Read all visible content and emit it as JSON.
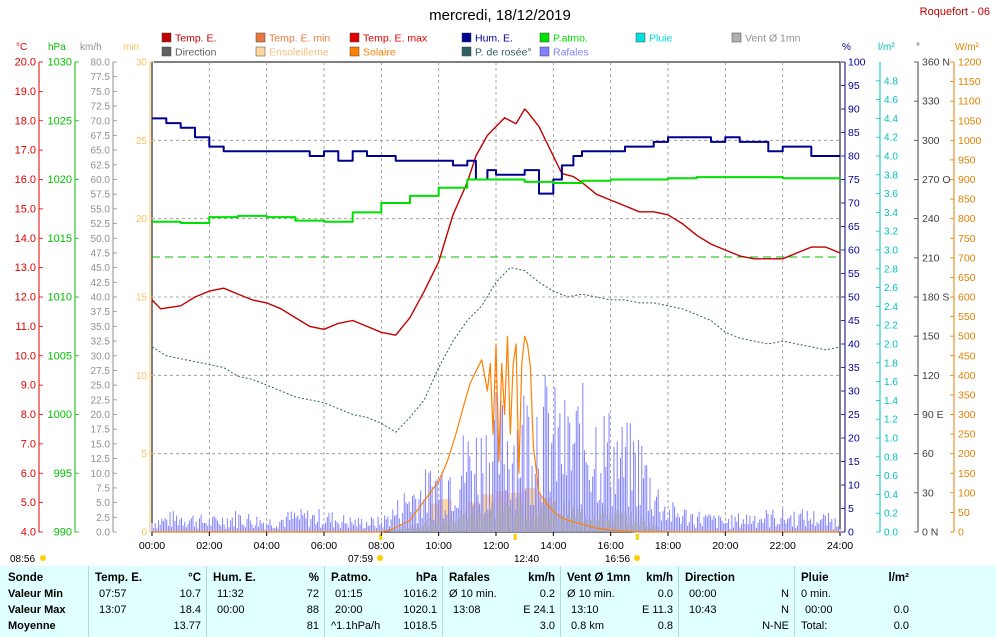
{
  "station": "Roquefort - 06",
  "chart_data": {
    "type": "line",
    "title": "mercredi, 18/12/2019",
    "legend": [
      {
        "label": "Temp. E.",
        "color": "#c00000"
      },
      {
        "label": "Direction",
        "color": "#606060"
      },
      {
        "label": "Temp. E. min",
        "color": "#e87840"
      },
      {
        "label": "Ensoleilleme",
        "color": "#ffd8a0"
      },
      {
        "label": "Temp. E. max",
        "color": "#e00000"
      },
      {
        "label": "Solaire",
        "color": "#ff8000"
      },
      {
        "label": "Hum. E.",
        "color": "#000090"
      },
      {
        "label": "P. de rosée°",
        "color": "#306060"
      },
      {
        "label": "P.atmo.",
        "color": "#00e000"
      },
      {
        "label": "Rafales",
        "color": "#8080ff"
      },
      {
        "label": "Pluie",
        "color": "#00e0e0"
      },
      {
        "label": "Vent Ø 1mn",
        "color": "#b0b0b0"
      }
    ],
    "x_ticks": [
      "00:00",
      "02:00",
      "04:00",
      "06:00",
      "08:00",
      "10:00",
      "12:00",
      "14:00",
      "16:00",
      "18:00",
      "20:00",
      "22:00",
      "24:00"
    ],
    "xlim": [
      0,
      24
    ],
    "axes": {
      "temp": {
        "unit": "°C",
        "range": [
          4,
          20
        ],
        "ticks": [
          "20.0",
          "19.0",
          "18.0",
          "17.0",
          "16.0",
          "15.0",
          "14.0",
          "13.0",
          "12.0",
          "11.0",
          "10.0",
          "9.0",
          "8.0",
          "7.0",
          "6.0",
          "5.0",
          "4.0"
        ],
        "color": "#e00000"
      },
      "pressure": {
        "unit": "hPa",
        "range": [
          990,
          1030
        ],
        "ticks": [
          "1030",
          "1025",
          "1020",
          "1015",
          "1010",
          "1005",
          "1000",
          "995",
          "990"
        ],
        "color": "#00c000"
      },
      "wind": {
        "unit": "km/h",
        "range": [
          0,
          80
        ],
        "ticks": [
          "80.0",
          "77.5",
          "75.0",
          "72.5",
          "70.0",
          "67.5",
          "65.0",
          "62.5",
          "60.0",
          "57.5",
          "55.0",
          "52.5",
          "50.0",
          "47.5",
          "45.0",
          "42.5",
          "40.0",
          "37.5",
          "35.0",
          "32.5",
          "30.0",
          "27.5",
          "25.0",
          "22.5",
          "20.0",
          "17.5",
          "15.0",
          "12.5",
          "10.0",
          "7.5",
          "5.0",
          "2.5",
          "0.0"
        ],
        "color": "#909090"
      },
      "sun": {
        "unit": "min",
        "range": [
          0,
          30
        ],
        "ticks": [
          "30",
          "25",
          "20",
          "15",
          "10",
          "5",
          "0"
        ],
        "color": "#ffc060"
      },
      "humidity": {
        "unit": "%",
        "range": [
          0,
          100
        ],
        "ticks": [
          "100",
          "95",
          "90",
          "85",
          "80",
          "75",
          "70",
          "65",
          "60",
          "55",
          "50",
          "45",
          "40",
          "35",
          "30",
          "25",
          "20",
          "15",
          "10",
          "5",
          "0"
        ],
        "color": "#000090"
      },
      "rain": {
        "unit": "l/m²",
        "range": [
          0,
          5
        ],
        "ticks": [
          "4.8",
          "4.6",
          "4.4",
          "4.2",
          "4.0",
          "3.8",
          "3.6",
          "3.4",
          "3.2",
          "3.0",
          "2.8",
          "2.6",
          "2.4",
          "2.2",
          "2.0",
          "1.8",
          "1.6",
          "1.4",
          "1.2",
          "1.0",
          "0.8",
          "0.6",
          "0.4",
          "0.2",
          "0.0"
        ],
        "color": "#00c0c0"
      },
      "direction": {
        "unit": "°",
        "range": [
          0,
          360
        ],
        "ticks": [
          "360 N",
          "330",
          "300",
          "270 O",
          "240",
          "210",
          "180 S",
          "150",
          "120",
          "90 E",
          "60",
          "30",
          "0 N"
        ],
        "color": "#404040"
      },
      "solar": {
        "unit": "W/m²",
        "range": [
          0,
          1200
        ],
        "ticks": [
          "1200",
          "1150",
          "1100",
          "1050",
          "1000",
          "950",
          "900",
          "850",
          "800",
          "750",
          "700",
          "650",
          "600",
          "550",
          "500",
          "450",
          "400",
          "350",
          "300",
          "250",
          "200",
          "150",
          "100",
          "50",
          "0"
        ],
        "color": "#e08000"
      }
    },
    "series": [
      {
        "name": "Temp. E.",
        "axis": "temp",
        "color": "#c00000",
        "x": [
          0,
          0.3,
          1,
          1.5,
          2,
          2.5,
          3,
          3.5,
          4,
          4.5,
          5,
          5.5,
          6,
          6.5,
          7,
          7.5,
          8,
          8.5,
          9,
          9.5,
          10,
          10.5,
          11,
          11.3,
          11.7,
          12,
          12.3,
          12.7,
          13,
          13.1,
          13.5,
          14,
          14.3,
          14.7,
          15,
          15.5,
          16,
          16.5,
          17,
          17.5,
          18,
          18.5,
          19,
          19.5,
          20,
          20.5,
          21,
          21.5,
          22,
          22.5,
          23,
          23.5,
          24
        ],
        "y": [
          11.9,
          11.6,
          11.7,
          12.0,
          12.2,
          12.3,
          12.1,
          11.9,
          11.8,
          11.6,
          11.3,
          11.0,
          10.9,
          11.1,
          11.2,
          11.0,
          10.8,
          10.7,
          11.3,
          12.2,
          13.2,
          14.8,
          15.9,
          16.8,
          17.5,
          17.8,
          18.1,
          17.9,
          18.4,
          18.3,
          17.8,
          16.8,
          16.2,
          16.1,
          15.9,
          15.5,
          15.3,
          15.1,
          14.9,
          14.9,
          14.8,
          14.5,
          14.1,
          13.8,
          13.6,
          13.4,
          13.3,
          13.3,
          13.3,
          13.5,
          13.7,
          13.7,
          13.5
        ]
      },
      {
        "name": "Hum. E.",
        "axis": "humidity",
        "color": "#000090",
        "x": [
          0,
          0.5,
          1,
          1.5,
          2,
          2.5,
          3,
          3.5,
          4,
          4.5,
          5,
          5.5,
          6,
          6.5,
          7,
          7.5,
          8,
          8.5,
          9,
          9.5,
          10,
          10.5,
          11,
          11.3,
          11.7,
          12,
          12.5,
          13,
          13.5,
          14,
          14.3,
          14.7,
          15,
          15.5,
          16,
          16.5,
          17,
          17.5,
          18,
          18.5,
          19,
          19.5,
          20,
          20.5,
          21,
          21.5,
          22,
          22.5,
          23,
          23.5,
          24
        ],
        "y": [
          88,
          87,
          86,
          84,
          82,
          81,
          81,
          81,
          81,
          81,
          81,
          80,
          81,
          79,
          81,
          80,
          80,
          79,
          79,
          79,
          79,
          78,
          79,
          75,
          77,
          76,
          76,
          77,
          72,
          75,
          78,
          80,
          81,
          81,
          81,
          82,
          82,
          83,
          84,
          84,
          84,
          83,
          84,
          83,
          83,
          81,
          82,
          82,
          80,
          80,
          80
        ]
      },
      {
        "name": "P.atmo.",
        "axis": "pressure",
        "color": "#00e000",
        "x": [
          0,
          1,
          2,
          3,
          4,
          5,
          6,
          7,
          8,
          9,
          10,
          11,
          12,
          13,
          14,
          15,
          16,
          17,
          18,
          19,
          20,
          21,
          22,
          23,
          24
        ],
        "y": [
          1016.4,
          1016.3,
          1016.8,
          1016.9,
          1016.8,
          1016.5,
          1016.4,
          1017.2,
          1018.0,
          1018.6,
          1019.3,
          1020.0,
          1020.0,
          1019.8,
          1019.7,
          1019.9,
          1020.0,
          1020.0,
          1020.1,
          1020.2,
          1020.2,
          1020.2,
          1020.1,
          1020.1,
          1020.0
        ]
      },
      {
        "name": "P. de rosée°",
        "axis": "temp",
        "color": "#306060",
        "x": [
          0,
          0.5,
          1,
          1.5,
          2,
          2.5,
          3,
          3.5,
          4,
          4.5,
          5,
          5.5,
          6,
          6.5,
          7,
          7.5,
          8,
          8.5,
          9,
          9.5,
          10,
          10.5,
          11,
          11.5,
          12,
          12.5,
          13,
          13.5,
          14,
          14.5,
          15,
          15.5,
          16,
          16.5,
          17,
          17.5,
          18,
          18.5,
          19,
          19.5,
          20,
          20.5,
          21,
          21.5,
          22,
          22.5,
          23,
          23.5,
          24
        ],
        "y": [
          10.3,
          10.0,
          9.9,
          9.8,
          9.7,
          9.6,
          9.3,
          9.2,
          9.0,
          8.8,
          8.6,
          8.5,
          8.4,
          8.2,
          8.0,
          7.9,
          7.7,
          7.4,
          7.9,
          8.5,
          9.6,
          10.5,
          11.2,
          11.7,
          12.5,
          13.0,
          12.9,
          12.5,
          12.2,
          12.0,
          12.1,
          12.0,
          11.9,
          11.9,
          11.8,
          11.8,
          11.7,
          11.6,
          11.4,
          11.2,
          10.8,
          10.6,
          10.5,
          10.4,
          10.5,
          10.4,
          10.3,
          10.2,
          10.3
        ]
      },
      {
        "name": "Solaire",
        "axis": "solar",
        "color": "#ff8000",
        "x": [
          0,
          8,
          8.3,
          8.6,
          9,
          9.3,
          9.6,
          10,
          10.3,
          10.6,
          10.9,
          11.1,
          11.3,
          11.5,
          11.7,
          11.8,
          11.9,
          12,
          12.1,
          12.2,
          12.3,
          12.4,
          12.5,
          12.6,
          12.7,
          12.8,
          12.9,
          13,
          13.1,
          13.2,
          13.3,
          13.5,
          13.7,
          13.9,
          14.2,
          14.5,
          15,
          15.5,
          16,
          16.5,
          17,
          24
        ],
        "y": [
          0,
          0,
          5,
          15,
          30,
          60,
          90,
          130,
          180,
          250,
          330,
          380,
          410,
          440,
          360,
          430,
          250,
          480,
          180,
          430,
          300,
          500,
          250,
          430,
          480,
          150,
          430,
          500,
          480,
          420,
          220,
          100,
          80,
          60,
          40,
          30,
          20,
          10,
          5,
          2,
          0,
          0
        ]
      },
      {
        "name": "Rafales",
        "axis": "wind",
        "color": "#8080ff",
        "x": [
          0,
          1,
          2,
          3,
          4,
          5,
          6,
          7,
          8,
          8.5,
          9,
          9.5,
          10,
          10.5,
          11,
          11.5,
          12,
          12.5,
          13,
          13.5,
          14,
          14.5,
          15,
          15.5,
          16,
          16.5,
          17,
          17.5,
          18,
          19,
          20,
          21,
          22,
          23,
          24
        ],
        "y": [
          2,
          3,
          2,
          3,
          2,
          3,
          3,
          2,
          2,
          4,
          7,
          8,
          10,
          12,
          14,
          15,
          18,
          18,
          20,
          22,
          19,
          17,
          19,
          18,
          16,
          14,
          14,
          8,
          4,
          3,
          2,
          3,
          3,
          3,
          2
        ]
      },
      {
        "name": "Vent Ø 1mn",
        "axis": "wind",
        "color": "#b0b0b0",
        "x": [
          0,
          8,
          9,
          10,
          11,
          12,
          13,
          14,
          15,
          16,
          17,
          18,
          24
        ],
        "y": [
          0,
          0,
          1,
          2,
          3,
          4,
          4,
          4,
          3,
          3,
          2,
          0,
          0
        ]
      }
    ],
    "sun_bars": {
      "x": [
        9.7,
        10,
        11,
        11.5,
        12,
        12.5,
        13,
        13.5
      ],
      "y": [
        1.8,
        2.1,
        1.9,
        2.4,
        2.6,
        2.5,
        2.8,
        2.2
      ]
    },
    "reference_line": {
      "axis": "humidity",
      "value": 58.5,
      "color": "#00c000"
    }
  },
  "annotations": {
    "left_time": "08:56",
    "sunrise": "07:59",
    "noon": "12:40",
    "sunset": "16:56"
  },
  "summary": {
    "labels": [
      "Sonde",
      "Valeur Min",
      "Valeur Max",
      "Moyenne"
    ],
    "temp": {
      "title": "Temp. E.",
      "unit": "°C",
      "min_time": "07:57",
      "min": "10.7",
      "max_time": "13:07",
      "max": "18.4",
      "avg": "13.77"
    },
    "hum": {
      "title": "Hum. E.",
      "unit": "%",
      "min_time": "11:32",
      "min": "72",
      "max_time": "00:00",
      "max": "88",
      "avg": "81"
    },
    "patmo": {
      "title": "P.atmo.",
      "unit": "hPa",
      "min_time": "01:15",
      "min": "1016.2",
      "max_time": "20:00",
      "max": "1020.1",
      "trend": "^1.1hPa/h",
      "avg": "1018.5"
    },
    "rafales": {
      "title": "Rafales",
      "unit": "km/h",
      "r1": "Ø 10 min.",
      "r1v": "0.2",
      "r2": "13:08",
      "r2v": "E 24.1",
      "avg": "3.0"
    },
    "vent": {
      "title": "Vent Ø 1mn",
      "unit": "km/h",
      "r1": "Ø 10 min.",
      "r1v": "0.0",
      "r2": "13:10",
      "r2v": "E 11.3",
      "r3": "0.8 km",
      "r3v": "0.8"
    },
    "dir": {
      "title": "Direction",
      "r1": "00:00",
      "r1v": "N",
      "r2": "10:43",
      "r2v": "N",
      "r3v": "N-NE"
    },
    "pluie": {
      "title": "Pluie",
      "unit": "l/m²",
      "r1": "0 min.",
      "r2": "00:00",
      "r2v": "0.0",
      "r3": "Total:",
      "r3v": "0.0"
    }
  }
}
